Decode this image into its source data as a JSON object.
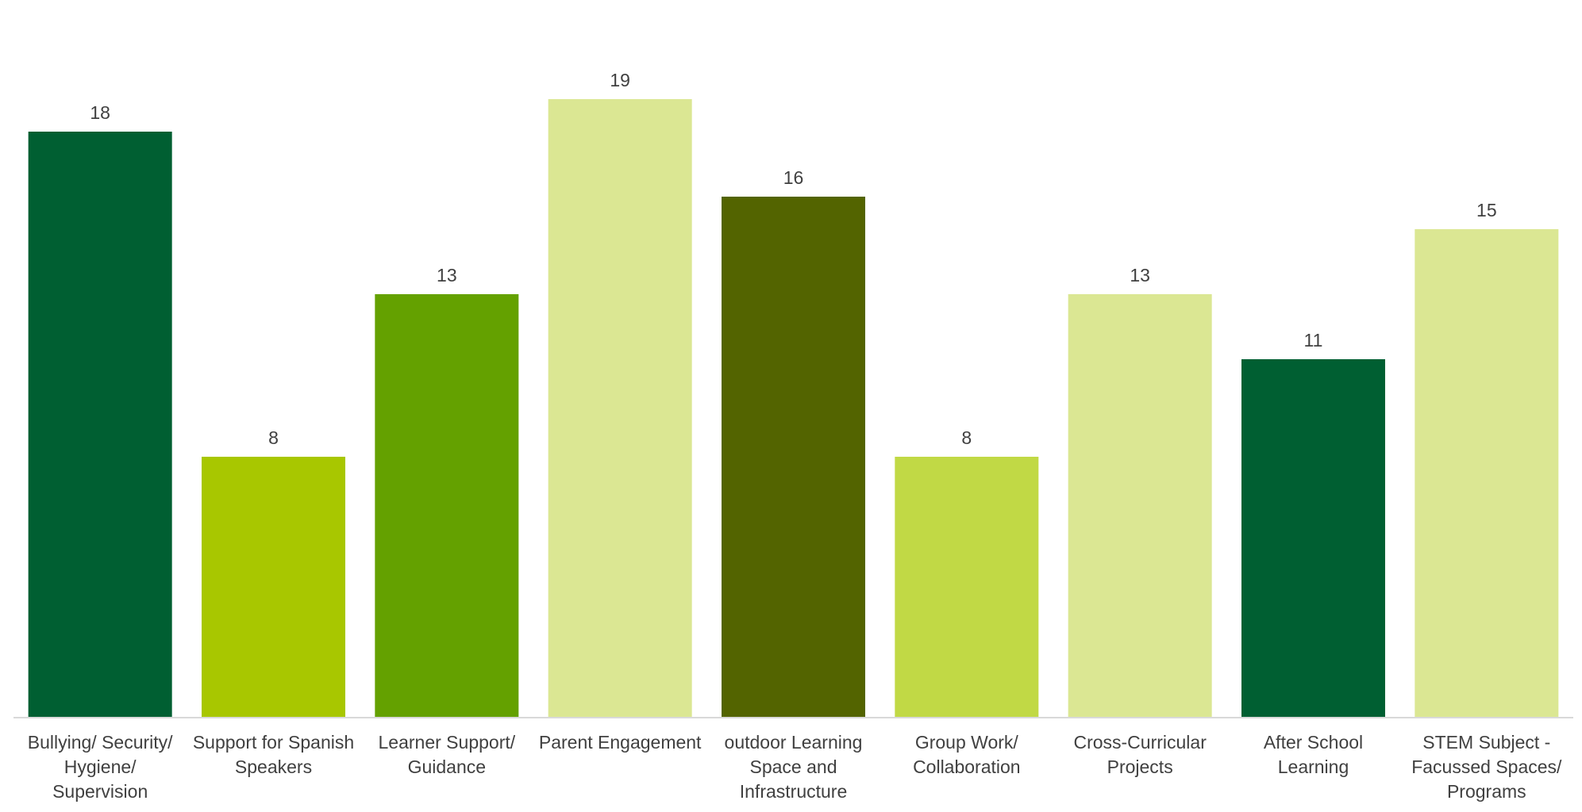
{
  "chart_data": {
    "type": "bar",
    "title": "",
    "xlabel": "",
    "ylabel": "",
    "ylim": [
      0,
      22
    ],
    "grid": false,
    "legend": "none",
    "categories": [
      [
        "Bullying/ Security/",
        "Hygiene/",
        "Supervision"
      ],
      [
        "Support for Spanish",
        "Speakers"
      ],
      [
        "Learner Support/",
        "Guidance"
      ],
      [
        "Parent Engagement"
      ],
      [
        "outdoor Learning",
        "Space and",
        "Infrastructure"
      ],
      [
        "Group Work/",
        "Collaboration"
      ],
      [
        "Cross-Curricular",
        "Projects"
      ],
      [
        "After School",
        "Learning"
      ],
      [
        "STEM Subject -",
        "Facussed Spaces/",
        "Programs"
      ]
    ],
    "values": [
      18,
      8,
      13,
      19,
      16,
      8,
      13,
      11,
      15
    ],
    "colors": [
      "#005f32",
      "#a8c700",
      "#64a100",
      "#dbe793",
      "#536400",
      "#c1d945",
      "#dbe793",
      "#005f32",
      "#dbe793"
    ]
  }
}
